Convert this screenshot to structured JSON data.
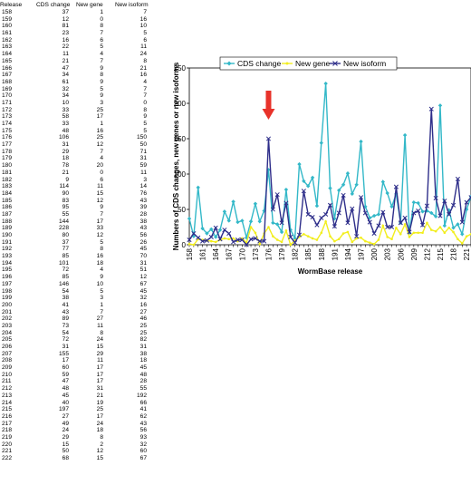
{
  "table": {
    "headers": [
      "Release",
      "CDS change",
      "New gene",
      "New isoform"
    ],
    "rows": [
      [
        "158",
        "37",
        "1",
        "7"
      ],
      [
        "159",
        "12",
        "0",
        "16"
      ],
      [
        "160",
        "81",
        "8",
        "10"
      ],
      [
        "161",
        "23",
        "7",
        "5"
      ],
      [
        "162",
        "16",
        "6",
        "6"
      ],
      [
        "163",
        "22",
        "5",
        "11"
      ],
      [
        "164",
        "11",
        "4",
        "24"
      ],
      [
        "165",
        "21",
        "7",
        "8"
      ],
      [
        "166",
        "47",
        "9",
        "21"
      ],
      [
        "167",
        "34",
        "8",
        "16"
      ],
      [
        "168",
        "61",
        "9",
        "4"
      ],
      [
        "169",
        "32",
        "5",
        "7"
      ],
      [
        "170",
        "34",
        "9",
        "7"
      ],
      [
        "171",
        "10",
        "3",
        "0"
      ],
      [
        "172",
        "33",
        "25",
        "8"
      ],
      [
        "173",
        "58",
        "17",
        "9"
      ],
      [
        "174",
        "33",
        "1",
        "5"
      ],
      [
        "175",
        "48",
        "16",
        "5"
      ],
      [
        "176",
        "106",
        "25",
        "150"
      ],
      [
        "177",
        "31",
        "12",
        "50"
      ],
      [
        "178",
        "29",
        "7",
        "71"
      ],
      [
        "179",
        "18",
        "4",
        "31"
      ],
      [
        "180",
        "78",
        "20",
        "59"
      ],
      [
        "181",
        "21",
        "0",
        "11"
      ],
      [
        "182",
        "9",
        "6",
        "3"
      ],
      [
        "183",
        "114",
        "11",
        "14"
      ],
      [
        "184",
        "90",
        "15",
        "76"
      ],
      [
        "185",
        "83",
        "12",
        "43"
      ],
      [
        "186",
        "95",
        "9",
        "39"
      ],
      [
        "187",
        "55",
        "7",
        "28"
      ],
      [
        "188",
        "144",
        "17",
        "38"
      ],
      [
        "189",
        "228",
        "33",
        "43"
      ],
      [
        "190",
        "80",
        "12",
        "56"
      ],
      [
        "191",
        "37",
        "5",
        "26"
      ],
      [
        "192",
        "77",
        "8",
        "45"
      ],
      [
        "193",
        "85",
        "16",
        "70"
      ],
      [
        "194",
        "101",
        "18",
        "31"
      ],
      [
        "195",
        "72",
        "4",
        "51"
      ],
      [
        "196",
        "85",
        "9",
        "12"
      ],
      [
        "197",
        "146",
        "10",
        "67"
      ],
      [
        "198",
        "54",
        "5",
        "45"
      ],
      [
        "199",
        "38",
        "3",
        "32"
      ],
      [
        "200",
        "41",
        "1",
        "16"
      ],
      [
        "201",
        "43",
        "7",
        "27"
      ],
      [
        "202",
        "89",
        "27",
        "46"
      ],
      [
        "203",
        "73",
        "11",
        "25"
      ],
      [
        "204",
        "54",
        "8",
        "25"
      ],
      [
        "205",
        "72",
        "24",
        "82"
      ],
      [
        "206",
        "31",
        "15",
        "31"
      ],
      [
        "207",
        "155",
        "29",
        "38"
      ],
      [
        "208",
        "17",
        "11",
        "18"
      ],
      [
        "209",
        "60",
        "17",
        "45"
      ],
      [
        "210",
        "59",
        "17",
        "48"
      ],
      [
        "211",
        "47",
        "17",
        "28"
      ],
      [
        "212",
        "48",
        "31",
        "55"
      ],
      [
        "213",
        "45",
        "21",
        "192"
      ],
      [
        "214",
        "40",
        "19",
        "66"
      ],
      [
        "215",
        "197",
        "25",
        "41"
      ],
      [
        "216",
        "27",
        "17",
        "62"
      ],
      [
        "217",
        "49",
        "24",
        "43"
      ],
      [
        "218",
        "24",
        "18",
        "56"
      ],
      [
        "219",
        "29",
        "8",
        "93"
      ],
      [
        "220",
        "15",
        "2",
        "32"
      ],
      [
        "221",
        "50",
        "12",
        "60"
      ],
      [
        "222",
        "68",
        "15",
        "67"
      ]
    ]
  },
  "chart_data": {
    "type": "line",
    "x": [
      158,
      159,
      160,
      161,
      162,
      163,
      164,
      165,
      166,
      167,
      168,
      169,
      170,
      171,
      172,
      173,
      174,
      175,
      176,
      177,
      178,
      179,
      180,
      181,
      182,
      183,
      184,
      185,
      186,
      187,
      188,
      189,
      190,
      191,
      192,
      193,
      194,
      195,
      196,
      197,
      198,
      199,
      200,
      201,
      202,
      203,
      204,
      205,
      206,
      207,
      208,
      209,
      210,
      211,
      212,
      213,
      214,
      215,
      216,
      217,
      218,
      219,
      220,
      221,
      222
    ],
    "series": [
      {
        "name": "CDS change",
        "color": "#33b8c8",
        "marker": "diamond",
        "values": [
          37,
          12,
          81,
          23,
          16,
          22,
          11,
          21,
          47,
          34,
          61,
          32,
          34,
          10,
          33,
          58,
          33,
          48,
          106,
          31,
          29,
          18,
          78,
          21,
          9,
          114,
          90,
          83,
          95,
          55,
          144,
          228,
          80,
          37,
          77,
          85,
          101,
          72,
          85,
          146,
          54,
          38,
          41,
          43,
          89,
          73,
          54,
          72,
          31,
          155,
          17,
          60,
          59,
          47,
          48,
          45,
          40,
          197,
          27,
          49,
          24,
          29,
          15,
          50,
          68
        ]
      },
      {
        "name": "New gene",
        "color": "#f2ee1e",
        "marker": "circle",
        "values": [
          1,
          0,
          8,
          7,
          6,
          5,
          4,
          7,
          9,
          8,
          9,
          5,
          9,
          3,
          25,
          17,
          1,
          16,
          25,
          12,
          7,
          4,
          20,
          0,
          6,
          11,
          15,
          12,
          9,
          7,
          17,
          33,
          12,
          5,
          8,
          16,
          18,
          4,
          9,
          10,
          5,
          3,
          1,
          7,
          27,
          11,
          8,
          24,
          15,
          29,
          11,
          17,
          17,
          17,
          31,
          21,
          19,
          25,
          17,
          24,
          18,
          8,
          2,
          12,
          15
        ]
      },
      {
        "name": "New isoform",
        "color": "#2e2e8a",
        "marker": "x",
        "values": [
          7,
          16,
          10,
          5,
          6,
          11,
          24,
          8,
          21,
          16,
          4,
          7,
          7,
          0,
          8,
          9,
          5,
          5,
          150,
          50,
          71,
          31,
          59,
          11,
          3,
          14,
          76,
          43,
          39,
          28,
          38,
          43,
          56,
          26,
          45,
          70,
          31,
          51,
          12,
          67,
          45,
          32,
          16,
          27,
          46,
          25,
          25,
          82,
          31,
          38,
          18,
          45,
          48,
          28,
          55,
          192,
          66,
          41,
          62,
          43,
          56,
          93,
          32,
          60,
          67
        ]
      }
    ],
    "xticks": [
      "158",
      "161",
      "164",
      "167",
      "170",
      "173",
      "176",
      "179",
      "182",
      "185",
      "188",
      "191",
      "194",
      "197",
      "200",
      "203",
      "206",
      "209",
      "212",
      "215",
      "218",
      "221"
    ],
    "yticks": [
      "0",
      "50",
      "100",
      "150",
      "200",
      "250"
    ],
    "ylim": [
      0,
      250
    ],
    "xlabel": "WormBase release",
    "ylabel": "Numbers of CDS changes, new genes or new isoforms",
    "legend_position": "top",
    "annotation": {
      "type": "arrow",
      "color": "#e8322a",
      "target_release": 176
    }
  }
}
